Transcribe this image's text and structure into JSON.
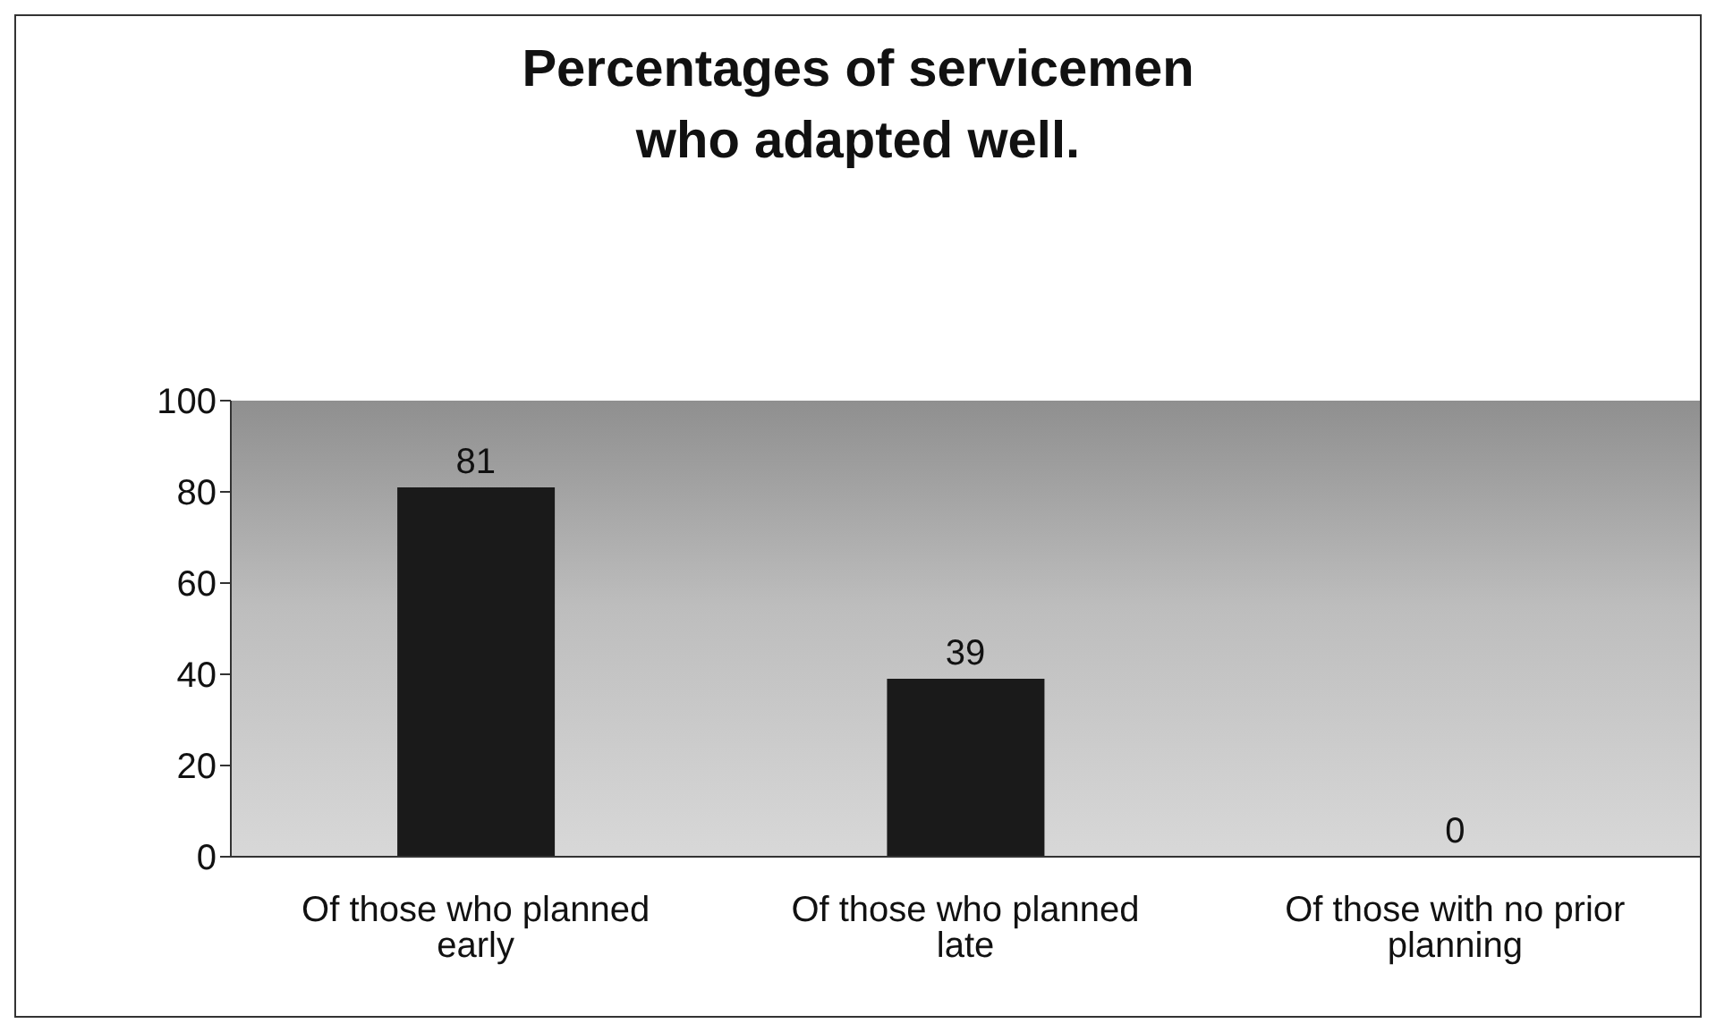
{
  "chart_data": {
    "type": "bar",
    "title": "Percentages of servicemen who adapted well.",
    "categories": [
      "Of those who planned early",
      "Of those who planned late",
      "Of those with no prior planning"
    ],
    "values": [
      81,
      39,
      0
    ],
    "color": "#1a1a1a",
    "ylim": [
      0,
      100
    ],
    "yticks": [
      0,
      20,
      40,
      60,
      80,
      100
    ],
    "grid": false,
    "data_labels": true
  }
}
